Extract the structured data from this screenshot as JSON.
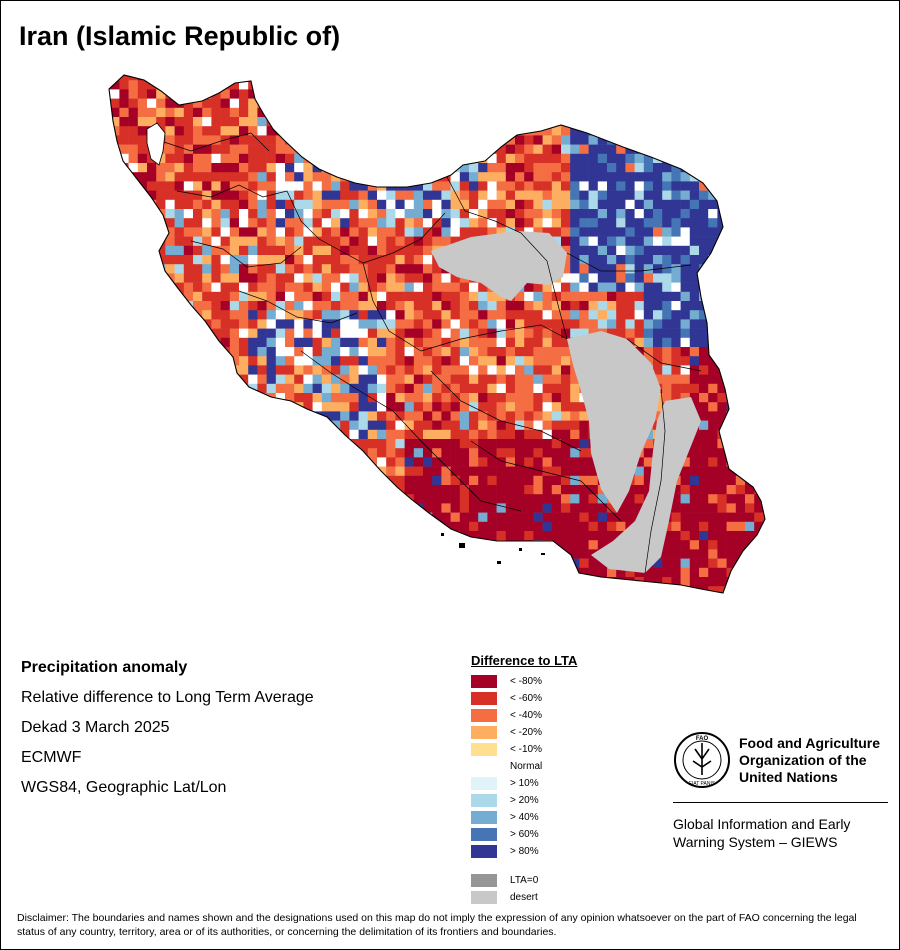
{
  "title": "Iran (Islamic Republic of)",
  "info": {
    "heading": "Precipitation anomaly",
    "subtitle": "Relative difference to Long Term Average",
    "period": "Dekad 3 March 2025",
    "source": "ECMWF",
    "projection": "WGS84, Geographic Lat/Lon"
  },
  "legend": {
    "title": "Difference to LTA",
    "items": [
      {
        "label": "< -80%",
        "color": "#a50026"
      },
      {
        "label": "< -60%",
        "color": "#d73027"
      },
      {
        "label": "< -40%",
        "color": "#f46d43"
      },
      {
        "label": "< -20%",
        "color": "#fdae61"
      },
      {
        "label": "< -10%",
        "color": "#fee090"
      },
      {
        "label": "Normal",
        "color": "#ffffff"
      },
      {
        "label": "> 10%",
        "color": "#e0f3f8"
      },
      {
        "label": "> 20%",
        "color": "#abd9e9"
      },
      {
        "label": "> 40%",
        "color": "#74add1"
      },
      {
        "label": "> 60%",
        "color": "#4575b4"
      },
      {
        "label": "> 80%",
        "color": "#313695"
      }
    ],
    "extra": [
      {
        "label": "LTA=0",
        "color": "#969696"
      },
      {
        "label": "desert",
        "color": "#c8c8c8"
      }
    ]
  },
  "fao": {
    "logo_text": "FAO",
    "motto": "FIAT PANIS",
    "name_lines": [
      "Food and Agriculture",
      "Organization of the",
      "United Nations"
    ],
    "sub_lines": [
      "Global Information and Early",
      "Warning System – GIEWS"
    ]
  },
  "disclaimer": "Disclaimer: The boundaries and names shown and the designations used on this map do not imply the expression of any opinion whatsoever on the part of FAO concerning the legal status of any country, territory, area or of its authorities, or concerning the delimitation of its frontiers and boundaries."
}
